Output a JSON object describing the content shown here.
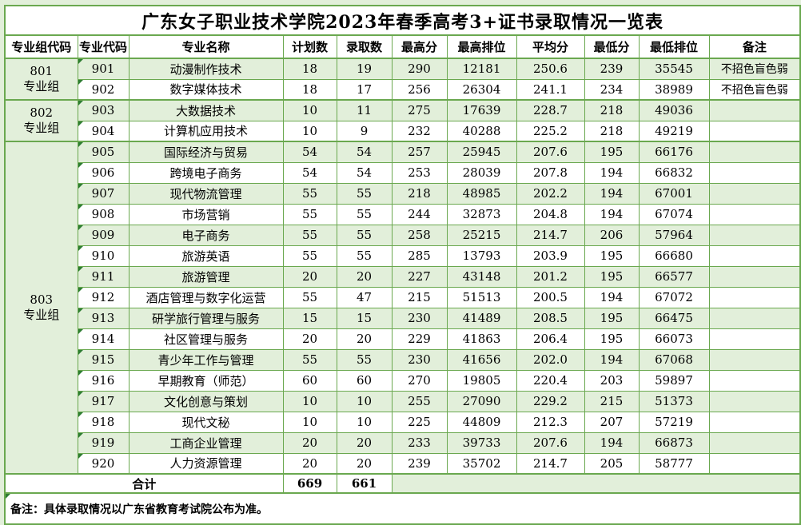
{
  "title": "广东女子职业技术学院2023年春季高考3+证书录取情况一览表",
  "colors": {
    "row_fill_green": "#e2efda",
    "grid_border_green": "#6aa84f",
    "cell_marker_triangle_green": "#2e7d32",
    "text": "#000000"
  },
  "table": {
    "columns": [
      "专业组代码",
      "专业代码",
      "专业名称",
      "计划数",
      "录取数",
      "最高分",
      "最高排位",
      "平均分",
      "最低分",
      "最低排位",
      "备注"
    ],
    "groups": [
      {
        "code": "801",
        "suffix": "专业组",
        "span": 2
      },
      {
        "code": "802",
        "suffix": "专业组",
        "span": 2
      },
      {
        "code": "803",
        "suffix": "专业组",
        "span": 16
      }
    ],
    "rows": [
      {
        "group": 0,
        "code": "901",
        "name": "动漫制作技术",
        "plan": "18",
        "admitted": "19",
        "max": "290",
        "max_rank": "12181",
        "avg": "250.6",
        "min": "239",
        "min_rank": "35545",
        "remark": "不招色盲色弱"
      },
      {
        "code": "902",
        "name": "数字媒体技术",
        "plan": "18",
        "admitted": "17",
        "max": "256",
        "max_rank": "26304",
        "avg": "241.1",
        "min": "234",
        "min_rank": "38989",
        "remark": "不招色盲色弱"
      },
      {
        "group": 1,
        "code": "903",
        "name": "大数据技术",
        "plan": "10",
        "admitted": "11",
        "max": "275",
        "max_rank": "17639",
        "avg": "228.7",
        "min": "218",
        "min_rank": "49036",
        "remark": ""
      },
      {
        "code": "904",
        "name": "计算机应用技术",
        "plan": "10",
        "admitted": "9",
        "max": "232",
        "max_rank": "40288",
        "avg": "225.2",
        "min": "218",
        "min_rank": "49219",
        "remark": ""
      },
      {
        "group": 2,
        "code": "905",
        "name": "国际经济与贸易",
        "plan": "54",
        "admitted": "54",
        "max": "257",
        "max_rank": "25945",
        "avg": "207.6",
        "min": "195",
        "min_rank": "66176",
        "remark": ""
      },
      {
        "code": "906",
        "name": "跨境电子商务",
        "plan": "54",
        "admitted": "54",
        "max": "253",
        "max_rank": "28039",
        "avg": "207.8",
        "min": "194",
        "min_rank": "66832",
        "remark": ""
      },
      {
        "code": "907",
        "name": "现代物流管理",
        "plan": "55",
        "admitted": "55",
        "max": "218",
        "max_rank": "48985",
        "avg": "202.2",
        "min": "194",
        "min_rank": "67001",
        "remark": ""
      },
      {
        "code": "908",
        "name": "市场营销",
        "plan": "55",
        "admitted": "55",
        "max": "244",
        "max_rank": "32873",
        "avg": "204.8",
        "min": "194",
        "min_rank": "67074",
        "remark": ""
      },
      {
        "code": "909",
        "name": "电子商务",
        "plan": "55",
        "admitted": "55",
        "max": "258",
        "max_rank": "25215",
        "avg": "214.7",
        "min": "206",
        "min_rank": "57964",
        "remark": ""
      },
      {
        "code": "910",
        "name": "旅游英语",
        "plan": "55",
        "admitted": "55",
        "max": "285",
        "max_rank": "13793",
        "avg": "203.9",
        "min": "195",
        "min_rank": "66680",
        "remark": ""
      },
      {
        "code": "911",
        "name": "旅游管理",
        "plan": "20",
        "admitted": "20",
        "max": "227",
        "max_rank": "43148",
        "avg": "201.2",
        "min": "195",
        "min_rank": "66577",
        "remark": ""
      },
      {
        "code": "912",
        "name": "酒店管理与数字化运营",
        "plan": "55",
        "admitted": "47",
        "max": "215",
        "max_rank": "51513",
        "avg": "200.5",
        "min": "194",
        "min_rank": "67072",
        "remark": ""
      },
      {
        "code": "913",
        "name": "研学旅行管理与服务",
        "plan": "15",
        "admitted": "15",
        "max": "230",
        "max_rank": "41489",
        "avg": "208.5",
        "min": "195",
        "min_rank": "66475",
        "remark": ""
      },
      {
        "code": "914",
        "name": "社区管理与服务",
        "plan": "20",
        "admitted": "20",
        "max": "229",
        "max_rank": "41863",
        "avg": "206.4",
        "min": "195",
        "min_rank": "66073",
        "remark": ""
      },
      {
        "code": "915",
        "name": "青少年工作与管理",
        "plan": "55",
        "admitted": "55",
        "max": "230",
        "max_rank": "41656",
        "avg": "202.0",
        "min": "194",
        "min_rank": "67068",
        "remark": ""
      },
      {
        "code": "916",
        "name": "早期教育（师范）",
        "plan": "60",
        "admitted": "60",
        "max": "270",
        "max_rank": "19805",
        "avg": "220.4",
        "min": "203",
        "min_rank": "59897",
        "remark": ""
      },
      {
        "code": "917",
        "name": "文化创意与策划",
        "plan": "10",
        "admitted": "10",
        "max": "255",
        "max_rank": "27090",
        "avg": "229.2",
        "min": "215",
        "min_rank": "51373",
        "remark": ""
      },
      {
        "code": "918",
        "name": "现代文秘",
        "plan": "10",
        "admitted": "10",
        "max": "225",
        "max_rank": "44809",
        "avg": "212.3",
        "min": "207",
        "min_rank": "57219",
        "remark": ""
      },
      {
        "code": "919",
        "name": "工商企业管理",
        "plan": "20",
        "admitted": "20",
        "max": "233",
        "max_rank": "39733",
        "avg": "207.6",
        "min": "194",
        "min_rank": "66873",
        "remark": ""
      },
      {
        "code": "920",
        "name": "人力资源管理",
        "plan": "20",
        "admitted": "20",
        "max": "239",
        "max_rank": "35702",
        "avg": "214.7",
        "min": "205",
        "min_rank": "58777",
        "remark": ""
      }
    ],
    "total": {
      "label": "合计",
      "plan": "669",
      "admitted": "661"
    }
  },
  "footer": {
    "note": "备注：具体录取情况以广东省教育考试院公布为准。"
  }
}
